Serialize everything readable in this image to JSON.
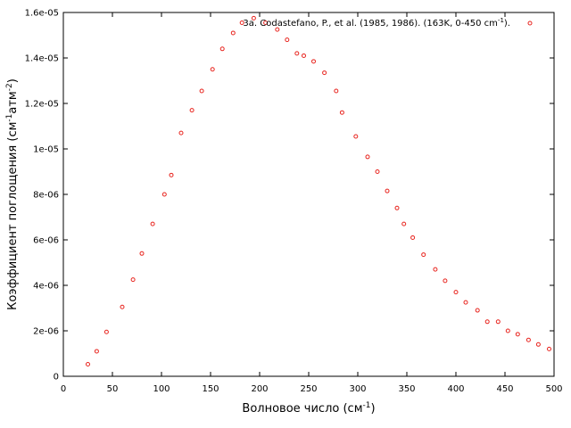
{
  "chart_data": {
    "type": "scatter",
    "xlabel": "Волновое число (см",
    "xlabel_sup": "-1",
    "xlabel_tail": ")",
    "ylabel_parts": {
      "a": "Коэффициент поглощения (см",
      "a_sup": "-1",
      "b": "атм",
      "b_sup": "-2",
      "c": ")"
    },
    "xlim": [
      0,
      500
    ],
    "ylim": [
      0,
      1.6e-05
    ],
    "x_ticks": [
      "0",
      "50",
      "100",
      "150",
      "200",
      "250",
      "300",
      "350",
      "400",
      "450",
      "500"
    ],
    "x_tick_values": [
      0,
      50,
      100,
      150,
      200,
      250,
      300,
      350,
      400,
      450,
      500
    ],
    "y_ticks": [
      "0",
      "2e-06",
      "4e-06",
      "6e-06",
      "8e-06",
      "1e-05",
      "1.2e-05",
      "1.4e-05",
      "1.6e-05"
    ],
    "y_tick_values": [
      0,
      2e-06,
      4e-06,
      6e-06,
      8e-06,
      1e-05,
      1.2e-05,
      1.4e-05,
      1.6e-05
    ],
    "grid": false,
    "legend_position": "top-right",
    "legend_main": "3a. Codastefano, P., et al. (1985, 1986). (163K, 0-450 cm",
    "legend_sup": "-1",
    "legend_tail": ").",
    "series": [
      {
        "name": "3a. Codastefano, P., et al. (1985, 1986). (163K, 0-450 cm-1).",
        "color": "#e8251f",
        "marker": "circle",
        "x": [
          25,
          34,
          44,
          60,
          71,
          80,
          91,
          103,
          110,
          120,
          131,
          141,
          152,
          162,
          173,
          182,
          194,
          206,
          218,
          228,
          238,
          245,
          255,
          266,
          278,
          284,
          298,
          310,
          320,
          330,
          340,
          347,
          356,
          367,
          379,
          389,
          400,
          410,
          422,
          432,
          443,
          453,
          463,
          474,
          484,
          495
        ],
        "y": [
          5.3e-07,
          1.1e-06,
          1.95e-06,
          3.05e-06,
          4.25e-06,
          5.4e-06,
          6.7e-06,
          8e-06,
          8.85e-06,
          1.07e-05,
          1.17e-05,
          1.255e-05,
          1.35e-05,
          1.44e-05,
          1.51e-05,
          1.555e-05,
          1.575e-05,
          1.555e-05,
          1.525e-05,
          1.48e-05,
          1.42e-05,
          1.41e-05,
          1.385e-05,
          1.335e-05,
          1.255e-05,
          1.16e-05,
          1.055e-05,
          9.65e-06,
          9e-06,
          8.15e-06,
          7.4e-06,
          6.7e-06,
          6.1e-06,
          5.35e-06,
          4.7e-06,
          4.2e-06,
          3.7e-06,
          3.25e-06,
          2.9e-06,
          2.4e-06,
          2.4e-06,
          2e-06,
          1.85e-06,
          1.6e-06,
          1.4e-06,
          1.2e-06
        ]
      }
    ]
  }
}
